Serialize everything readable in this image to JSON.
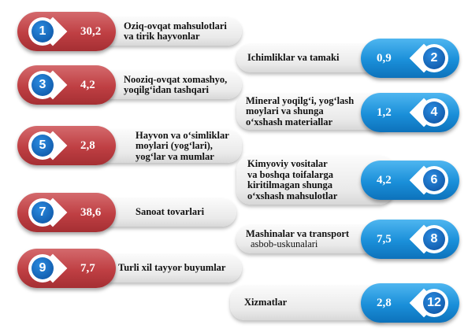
{
  "items": [
    {
      "num": "1",
      "value": "30,2",
      "label": "Oziq-ovqat mahsulotlari\nva tirik hayvonlar"
    },
    {
      "num": "2",
      "value": "0,9",
      "label": "Ichimliklar va tamaki"
    },
    {
      "num": "3",
      "value": "4,2",
      "label": "Nooziq-ovqat xomashyo,\nyoqilg‘idan tashqari"
    },
    {
      "num": "4",
      "value": "1,2",
      "label": "Mineral yoqilg‘i, yog‘lash\nmoylari va shunga\no‘xshash materiallar"
    },
    {
      "num": "5",
      "value": "2,8",
      "label": "Hayvon va o‘simliklar\nmoylari (yog‘lari),\nyog‘lar va mumlar"
    },
    {
      "num": "6",
      "value": "4,2",
      "label": "Kimyoviy vositalar\nva boshqa toifalarga\nkiritilmagan shunga\no‘xshash mahsulotlar"
    },
    {
      "num": "7",
      "value": "38,6",
      "label": "Sanoat tovarlari"
    },
    {
      "num": "8",
      "value": "7,5",
      "label": "Mashinalar va transport",
      "label_sub": "asbob-uskunalari"
    },
    {
      "num": "9",
      "value": "7,7",
      "label": "Turli xil tayyor buyumlar"
    },
    {
      "num": "12",
      "value": "2,8",
      "label": "Xizmatlar"
    }
  ],
  "colors": {
    "left_pill": "#bf3f43",
    "right_pill": "#1a8fd9",
    "number_circle": "#0b4f9e"
  }
}
